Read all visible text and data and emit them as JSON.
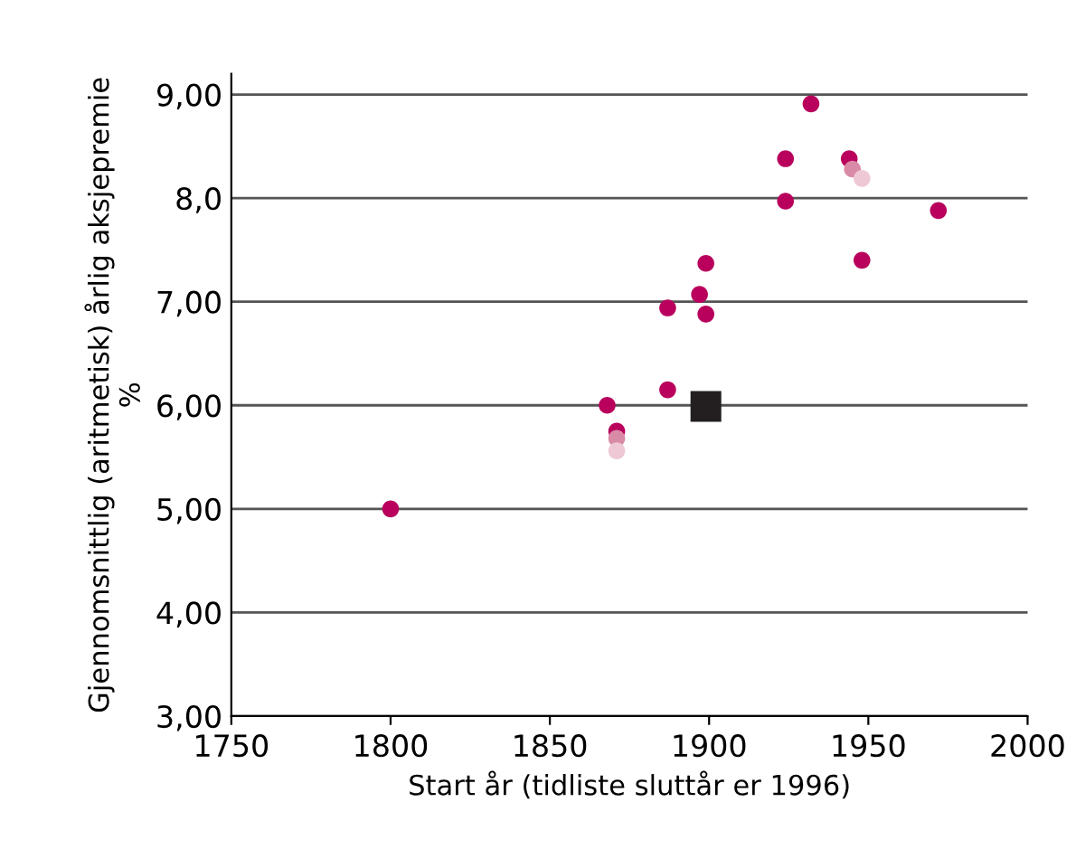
{
  "chart_data": {
    "type": "scatter",
    "xlabel": "Start år (tidliste sluttår er 1996)",
    "ylabel": "Gjennomsnittlig (aritmetisk) årlig aksjepremie\n%",
    "xlim": [
      1750,
      2000
    ],
    "xticks": [
      1750,
      1800,
      1850,
      1900,
      1950,
      2000
    ],
    "ylim": [
      3,
      9.2
    ],
    "yticks": [
      {
        "value": 3,
        "label": "3,00"
      },
      {
        "value": 4,
        "label": "4,00"
      },
      {
        "value": 5,
        "label": "5,00"
      },
      {
        "value": 6,
        "label": "6,00"
      },
      {
        "value": 7,
        "label": "7,00"
      },
      {
        "value": 8,
        "label": "8,0"
      },
      {
        "value": 9,
        "label": "9,00"
      }
    ],
    "grid": "y",
    "series": [
      {
        "color": "#b8005c",
        "marker": "circle",
        "x": [
          1800,
          1868,
          1871,
          1887,
          1887,
          1897,
          1899,
          1899,
          1924,
          1924,
          1932,
          1944,
          1948,
          1972
        ],
        "values": [
          5.0,
          6.0,
          5.75,
          6.15,
          6.94,
          7.07,
          7.37,
          6.88,
          8.38,
          7.97,
          8.91,
          8.38,
          7.4,
          7.88
        ]
      },
      {
        "color": "#d98aa6",
        "marker": "circle",
        "x": [
          1871,
          1945
        ],
        "values": [
          5.68,
          8.28
        ]
      },
      {
        "color": "#efc8d6",
        "marker": "circle",
        "x": [
          1871,
          1948
        ],
        "values": [
          5.56,
          8.19
        ]
      },
      {
        "color": "#231f20",
        "marker": "square",
        "x": [
          1899
        ],
        "values": [
          5.99
        ]
      }
    ]
  }
}
